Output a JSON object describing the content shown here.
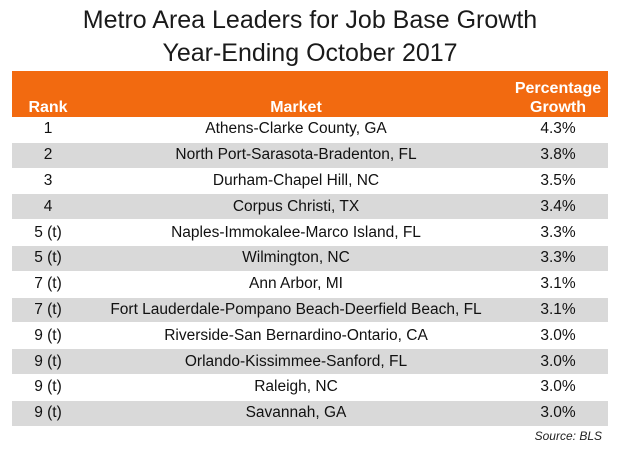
{
  "chart_data": {
    "type": "table",
    "title_line1": "Metro Area Leaders for Job Base Growth",
    "title_line2": "Year-Ending October 2017",
    "columns": {
      "rank": "Rank",
      "market": "Market",
      "growth_line1": "Percentage",
      "growth_line2": "Growth"
    },
    "rows": [
      {
        "rank": "1",
        "market": "Athens-Clarke County, GA",
        "growth": "4.3%"
      },
      {
        "rank": "2",
        "market": "North Port-Sarasota-Bradenton, FL",
        "growth": "3.8%"
      },
      {
        "rank": "3",
        "market": "Durham-Chapel Hill, NC",
        "growth": "3.5%"
      },
      {
        "rank": "4",
        "market": "Corpus Christi, TX",
        "growth": "3.4%"
      },
      {
        "rank": "5 (t)",
        "market": "Naples-Immokalee-Marco Island, FL",
        "growth": "3.3%"
      },
      {
        "rank": "5 (t)",
        "market": "Wilmington, NC",
        "growth": "3.3%"
      },
      {
        "rank": "7 (t)",
        "market": "Ann Arbor, MI",
        "growth": "3.1%"
      },
      {
        "rank": "7 (t)",
        "market": "Fort Lauderdale-Pompano Beach-Deerfield Beach, FL",
        "growth": "3.1%"
      },
      {
        "rank": "9 (t)",
        "market": "Riverside-San Bernardino-Ontario, CA",
        "growth": "3.0%"
      },
      {
        "rank": "9 (t)",
        "market": "Orlando-Kissimmee-Sanford, FL",
        "growth": "3.0%"
      },
      {
        "rank": "9 (t)",
        "market": "Raleigh, NC",
        "growth": "3.0%"
      },
      {
        "rank": "9 (t)",
        "market": "Savannah, GA",
        "growth": "3.0%"
      }
    ],
    "source": "Source: BLS",
    "colors": {
      "header": "#f26a10",
      "alt_row": "#d9d9d9"
    }
  }
}
